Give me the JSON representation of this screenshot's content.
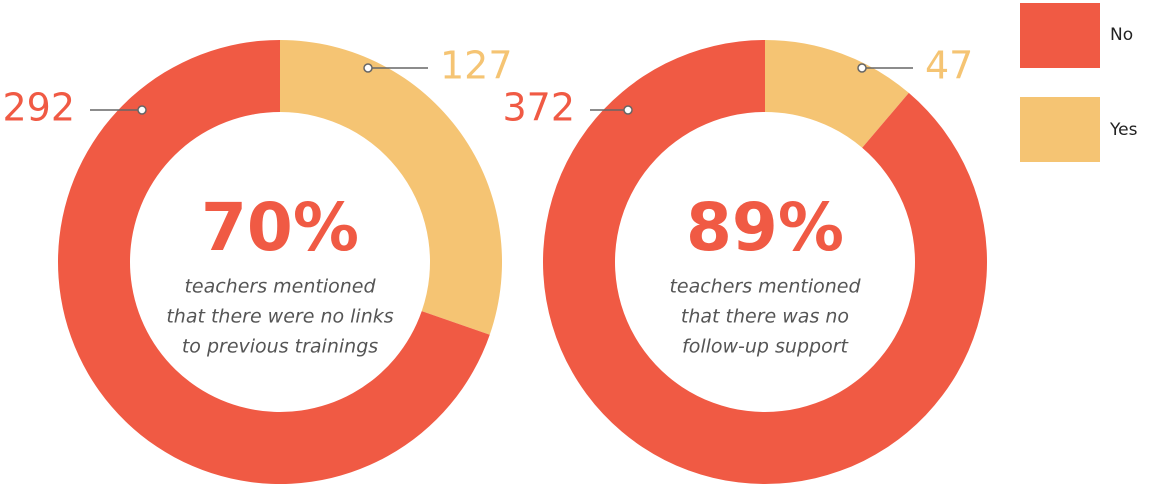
{
  "chart_data": [
    {
      "type": "pie",
      "categories": [
        "No",
        "Yes"
      ],
      "values": [
        292,
        127
      ],
      "colors": [
        "#f05a44",
        "#f5c473"
      ],
      "center_label": "70%",
      "caption": [
        "teachers mentioned",
        "that there were no links",
        "to previous trainings"
      ]
    },
    {
      "type": "pie",
      "categories": [
        "No",
        "Yes"
      ],
      "values": [
        372,
        47
      ],
      "colors": [
        "#f05a44",
        "#f5c473"
      ],
      "center_label": "89%",
      "caption": [
        "teachers mentioned",
        "that there was no",
        "follow-up support"
      ]
    }
  ]
}
